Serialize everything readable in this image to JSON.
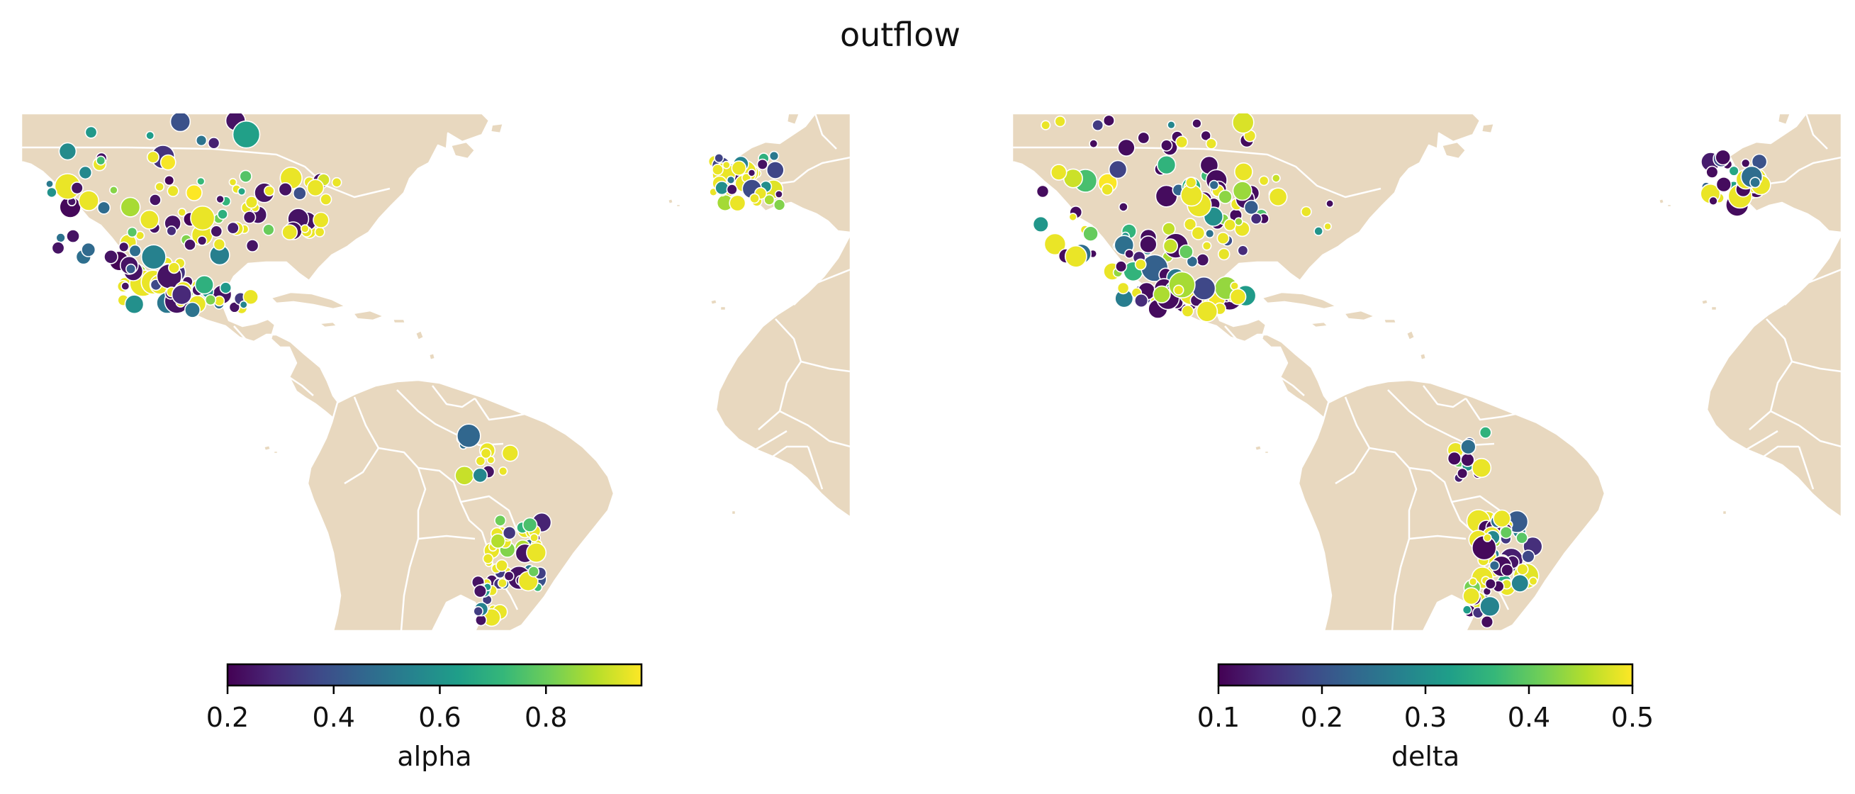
{
  "figure": {
    "title": "outflow"
  },
  "colors": {
    "land": "#e8d8bf",
    "border": "#ffffff",
    "ocean": "#ffffff",
    "colormap": "viridis",
    "viridis": [
      "#440154",
      "#482878",
      "#3e4a89",
      "#31688e",
      "#26828e",
      "#1f9e89",
      "#35b779",
      "#6ece58",
      "#b5de2b",
      "#fde725"
    ]
  },
  "panels": [
    {
      "colorbar": {
        "label": "alpha",
        "vmin": 0.2,
        "vmax": 0.98,
        "ticks": [
          0.2,
          0.4,
          0.6,
          0.8
        ],
        "tick_labels": [
          "0.2",
          "0.4",
          "0.6",
          "0.8"
        ]
      }
    },
    {
      "colorbar": {
        "label": "delta",
        "vmin": 0.1,
        "vmax": 0.5,
        "ticks": [
          0.1,
          0.2,
          0.3,
          0.4,
          0.5
        ],
        "tick_labels": [
          "0.1",
          "0.2",
          "0.3",
          "0.4",
          "0.5"
        ]
      }
    }
  ]
}
